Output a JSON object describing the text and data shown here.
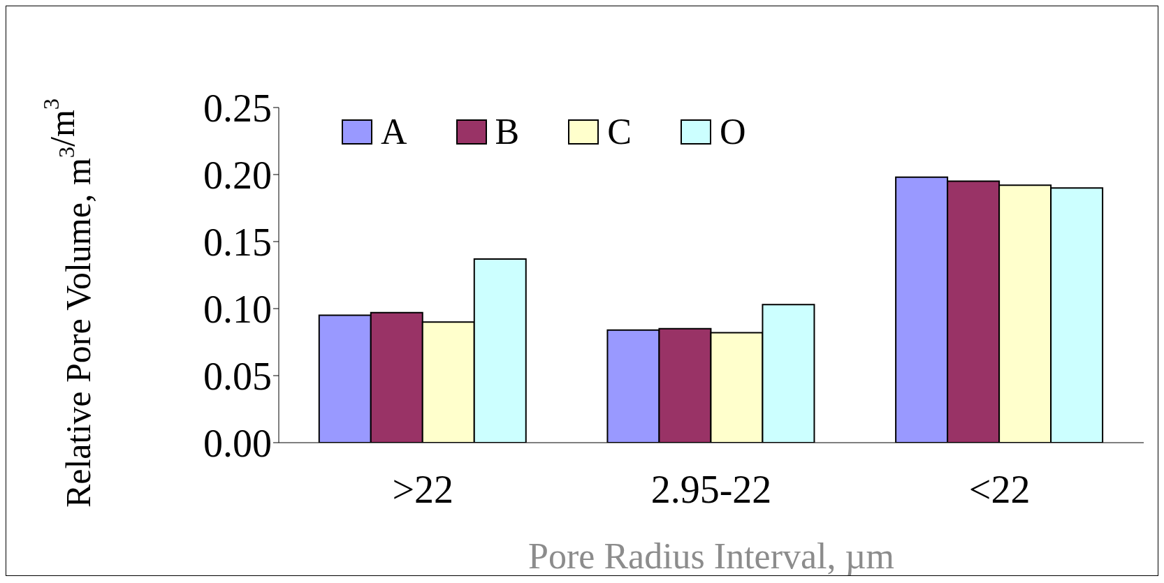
{
  "chart_data": {
    "type": "bar",
    "xlabel": "Pore Radius Interval, µm",
    "ylabel": "Relative Pore Volume, m$^{3}$/m$^{3}$",
    "categories": [
      ">22",
      "2.95-22",
      "<22"
    ],
    "series": [
      {
        "name": "A",
        "color": "#9999ff",
        "values": [
          0.095,
          0.084,
          0.198
        ]
      },
      {
        "name": "B",
        "color": "#993366",
        "values": [
          0.097,
          0.085,
          0.195
        ]
      },
      {
        "name": "C",
        "color": "#ffffcc",
        "values": [
          0.09,
          0.082,
          0.192
        ]
      },
      {
        "name": "O",
        "color": "#ccffff",
        "values": [
          0.137,
          0.103,
          0.19
        ]
      }
    ],
    "ylim": [
      0,
      0.25
    ],
    "yticks": [
      {
        "value": 0,
        "label": "0.00"
      },
      {
        "value": 0.05,
        "label": "0.05"
      },
      {
        "value": 0.1,
        "label": "0.10"
      },
      {
        "value": 0.15,
        "label": "0.15"
      },
      {
        "value": 0.2,
        "label": "0.20"
      },
      {
        "value": 0.25,
        "label": "0.25"
      }
    ],
    "grid": false,
    "legend": "top left"
  }
}
